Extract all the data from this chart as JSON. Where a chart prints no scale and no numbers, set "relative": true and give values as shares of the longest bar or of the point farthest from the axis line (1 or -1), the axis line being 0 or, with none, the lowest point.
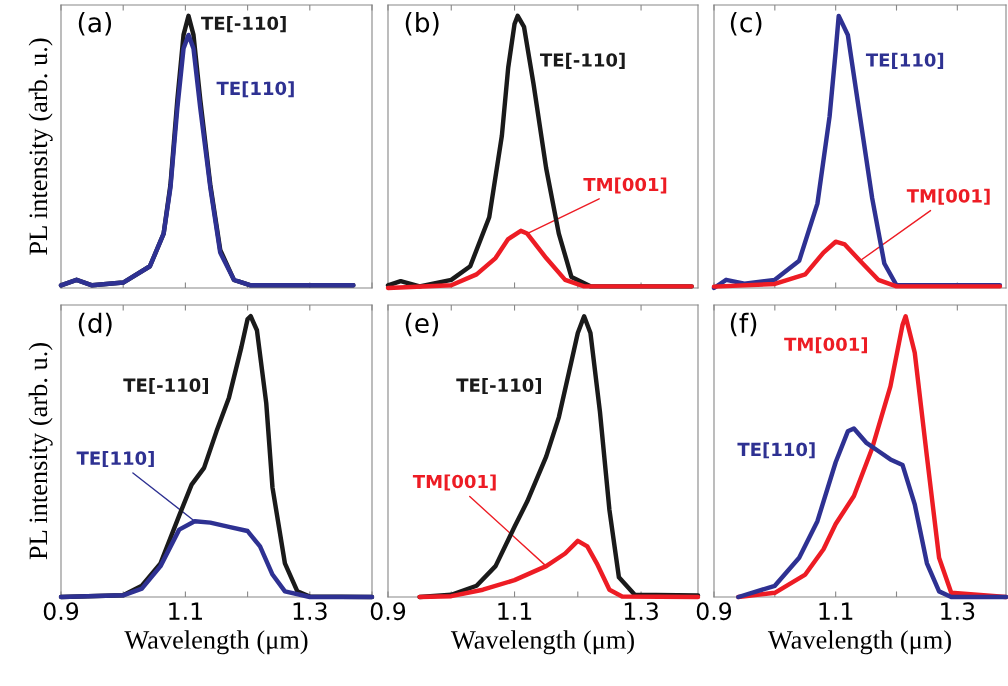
{
  "chart_data": [
    {
      "type": "line",
      "title": "(a)",
      "ylabel": "PL intensity (arb. u.)",
      "relative": true,
      "tick_labels": false,
      "xlim": [
        0.9,
        1.4
      ],
      "xticks": [
        {
          "value": 0.9,
          "label": null
        },
        {
          "value": 1.0,
          "label": null
        },
        {
          "value": 1.1,
          "label": null
        },
        {
          "value": 1.2,
          "label": null
        },
        {
          "value": 1.3,
          "label": null
        },
        {
          "value": 1.4,
          "label": null
        }
      ],
      "series": [
        {
          "name": "TE[-110]",
          "color": "#1a1a1a",
          "x": [
            0.9,
            0.925,
            0.95,
            1.0,
            1.043,
            1.065,
            1.076,
            1.087,
            1.097,
            1.105,
            1.113,
            1.124,
            1.14,
            1.156,
            1.178,
            1.205,
            1.3,
            1.37
          ],
          "values": [
            0.01,
            0.03,
            0.01,
            0.02,
            0.08,
            0.2,
            0.38,
            0.69,
            0.93,
            1.0,
            0.93,
            0.69,
            0.38,
            0.14,
            0.03,
            0.01,
            0.01,
            0.01
          ]
        },
        {
          "name": "TE[110]",
          "color": "#2e3192",
          "x": [
            0.9,
            0.925,
            0.95,
            1.0,
            1.043,
            1.065,
            1.076,
            1.087,
            1.097,
            1.105,
            1.113,
            1.124,
            1.14,
            1.156,
            1.178,
            1.205,
            1.3,
            1.37
          ],
          "values": [
            0.01,
            0.03,
            0.01,
            0.02,
            0.08,
            0.2,
            0.37,
            0.66,
            0.88,
            0.93,
            0.88,
            0.66,
            0.37,
            0.13,
            0.03,
            0.01,
            0.01,
            0.01
          ]
        }
      ]
    },
    {
      "type": "line",
      "title": "(b)",
      "relative": true,
      "tick_labels": false,
      "xlim": [
        0.9,
        1.39
      ],
      "xticks": [
        {
          "value": 0.9,
          "label": null
        },
        {
          "value": 1.0,
          "label": null
        },
        {
          "value": 1.1,
          "label": null
        },
        {
          "value": 1.2,
          "label": null
        },
        {
          "value": 1.3,
          "label": null
        }
      ],
      "series": [
        {
          "name": "TE[-110]",
          "color": "#1a1a1a",
          "x": [
            0.9,
            0.92,
            0.95,
            1.0,
            1.03,
            1.06,
            1.08,
            1.09,
            1.1,
            1.105,
            1.115,
            1.13,
            1.15,
            1.17,
            1.19,
            1.22,
            1.38
          ],
          "values": [
            0.01,
            0.025,
            0.006,
            0.03,
            0.08,
            0.26,
            0.56,
            0.81,
            0.97,
            1.0,
            0.96,
            0.75,
            0.44,
            0.2,
            0.04,
            0.006,
            0.006
          ]
        },
        {
          "name": "TM[001]",
          "color": "#ed1c24",
          "x": [
            0.9,
            1.0,
            1.04,
            1.07,
            1.09,
            1.11,
            1.12,
            1.15,
            1.18,
            1.21,
            1.38
          ],
          "values": [
            0.0,
            0.01,
            0.05,
            0.11,
            0.18,
            0.21,
            0.2,
            0.11,
            0.03,
            0.006,
            0.006
          ]
        }
      ]
    },
    {
      "type": "line",
      "title": "(c)",
      "relative": true,
      "tick_labels": false,
      "xlim": [
        0.9,
        1.38
      ],
      "xticks": [
        {
          "value": 0.9,
          "label": null
        },
        {
          "value": 1.0,
          "label": null
        },
        {
          "value": 1.1,
          "label": null
        },
        {
          "value": 1.2,
          "label": null
        },
        {
          "value": 1.3,
          "label": null
        }
      ],
      "series": [
        {
          "name": "TE[110]",
          "color": "#2e3192",
          "x": [
            0.9,
            0.92,
            0.95,
            1.0,
            1.04,
            1.07,
            1.09,
            1.1,
            1.105,
            1.12,
            1.14,
            1.16,
            1.18,
            1.2,
            1.37
          ],
          "values": [
            0.0,
            0.03,
            0.016,
            0.03,
            0.1,
            0.31,
            0.63,
            0.87,
            1.0,
            0.93,
            0.63,
            0.33,
            0.09,
            0.01,
            0.01
          ]
        },
        {
          "name": "TM[001]",
          "color": "#ed1c24",
          "x": [
            0.9,
            1.0,
            1.05,
            1.08,
            1.1,
            1.115,
            1.14,
            1.17,
            1.2,
            1.37
          ],
          "values": [
            0.005,
            0.015,
            0.05,
            0.13,
            0.17,
            0.16,
            0.1,
            0.03,
            0.006,
            0.006
          ]
        }
      ]
    },
    {
      "type": "line",
      "title": "(d)",
      "ylabel": "PL intensity (arb. u.)",
      "xlabel": "Wavelength (μm)",
      "relative": true,
      "tick_labels": "x",
      "xlim": [
        0.9,
        1.4
      ],
      "xticks": [
        0.9,
        {
          "value": 1.0,
          "label": null
        },
        1.1,
        {
          "value": 1.2,
          "label": null
        },
        1.3,
        {
          "value": 1.4,
          "label": null
        }
      ],
      "series": [
        {
          "name": "TE[-110]",
          "color": "#1a1a1a",
          "x": [
            0.9,
            1.0,
            1.03,
            1.06,
            1.09,
            1.11,
            1.13,
            1.15,
            1.17,
            1.19,
            1.2,
            1.205,
            1.215,
            1.23,
            1.24,
            1.26,
            1.28,
            1.3,
            1.4
          ],
          "values": [
            0.0,
            0.006,
            0.04,
            0.12,
            0.29,
            0.4,
            0.46,
            0.59,
            0.71,
            0.89,
            0.99,
            1.0,
            0.95,
            0.69,
            0.39,
            0.12,
            0.02,
            0.002,
            0.0
          ]
        },
        {
          "name": "TE[110]",
          "color": "#2e3192",
          "x": [
            0.9,
            1.0,
            1.03,
            1.06,
            1.09,
            1.115,
            1.14,
            1.17,
            1.2,
            1.22,
            1.24,
            1.26,
            1.3,
            1.4
          ],
          "values": [
            0.0,
            0.006,
            0.03,
            0.11,
            0.24,
            0.27,
            0.265,
            0.25,
            0.235,
            0.18,
            0.08,
            0.02,
            0.0,
            0.0
          ]
        }
      ]
    },
    {
      "type": "line",
      "title": "(e)",
      "xlabel": "Wavelength (μm)",
      "relative": true,
      "tick_labels": "x",
      "xlim": [
        0.9,
        1.39
      ],
      "xticks": [
        0.9,
        {
          "value": 1.0,
          "label": null
        },
        1.1,
        {
          "value": 1.2,
          "label": null
        },
        1.3
      ],
      "series": [
        {
          "name": "TE[-110]",
          "color": "#1a1a1a",
          "x": [
            0.95,
            1.0,
            1.04,
            1.07,
            1.1,
            1.12,
            1.15,
            1.17,
            1.19,
            1.2,
            1.21,
            1.22,
            1.235,
            1.25,
            1.265,
            1.29,
            1.39
          ],
          "values": [
            0.0,
            0.008,
            0.04,
            0.11,
            0.25,
            0.34,
            0.5,
            0.64,
            0.84,
            0.94,
            1.0,
            0.94,
            0.66,
            0.31,
            0.07,
            0.008,
            0.005
          ]
        },
        {
          "name": "TM[001]",
          "color": "#ed1c24",
          "x": [
            0.95,
            1.0,
            1.05,
            1.1,
            1.15,
            1.18,
            1.2,
            1.215,
            1.23,
            1.25,
            1.27,
            1.39
          ],
          "values": [
            0.0,
            0.003,
            0.026,
            0.06,
            0.11,
            0.155,
            0.2,
            0.18,
            0.12,
            0.026,
            0.002,
            0.0
          ]
        }
      ]
    },
    {
      "type": "line",
      "title": "(f)",
      "xlabel": "Wavelength (μm)",
      "relative": true,
      "tick_labels": "x",
      "xlim": [
        0.9,
        1.38
      ],
      "xticks": [
        0.9,
        {
          "value": 1.0,
          "label": null
        },
        1.1,
        {
          "value": 1.2,
          "label": null
        },
        1.3
      ],
      "series": [
        {
          "name": "TM[001]",
          "color": "#ed1c24",
          "x": [
            0.94,
            1.0,
            1.05,
            1.08,
            1.1,
            1.13,
            1.16,
            1.19,
            1.21,
            1.215,
            1.23,
            1.25,
            1.27,
            1.29,
            1.38
          ],
          "values": [
            0.0,
            0.015,
            0.08,
            0.17,
            0.26,
            0.36,
            0.53,
            0.75,
            0.97,
            1.0,
            0.87,
            0.5,
            0.14,
            0.015,
            0.0
          ]
        },
        {
          "name": "TE[110]",
          "color": "#2e3192",
          "x": [
            0.94,
            1.0,
            1.04,
            1.07,
            1.1,
            1.12,
            1.13,
            1.15,
            1.17,
            1.19,
            1.21,
            1.23,
            1.25,
            1.27,
            1.29,
            1.38
          ],
          "values": [
            0.0,
            0.04,
            0.14,
            0.27,
            0.48,
            0.59,
            0.6,
            0.55,
            0.52,
            0.49,
            0.47,
            0.33,
            0.12,
            0.02,
            0.0,
            0.0
          ]
        }
      ]
    }
  ]
}
